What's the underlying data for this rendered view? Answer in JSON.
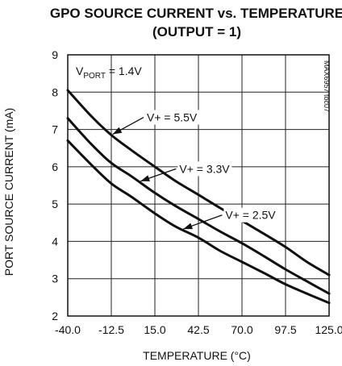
{
  "chart_data": {
    "type": "line",
    "title": "GPO SOURCE CURRENT vs. TEMPERATURE",
    "subtitle": "(OUTPUT = 1)",
    "xlabel": "TEMPERATURE (°C)",
    "ylabel": "PORT SOURCE CURRENT (mA)",
    "xlim": [
      -40,
      125
    ],
    "ylim": [
      2,
      9
    ],
    "xticks": [
      -40,
      -12.5,
      15,
      42.5,
      70,
      97.5,
      125
    ],
    "xtick_labels": [
      "-40.0",
      "-12.5",
      "15.0",
      "42.5",
      "70.0",
      "97.5",
      "125.0"
    ],
    "yticks": [
      2,
      3,
      4,
      5,
      6,
      7,
      8,
      9
    ],
    "ytick_labels": [
      "2",
      "3",
      "4",
      "5",
      "6",
      "7",
      "8",
      "9"
    ],
    "grid": true,
    "condition_text": {
      "prefix": "V",
      "sub": "PORT",
      "suffix": " = 1.4V"
    },
    "side_text": "MAX6957 toc07",
    "series": [
      {
        "name": "V+ = 5.5V",
        "x": [
          -40,
          -25,
          -12.5,
          0,
          15,
          28,
          42.5,
          56,
          70,
          84,
          97.5,
          111,
          125
        ],
        "y": [
          8.05,
          7.35,
          6.85,
          6.45,
          6.0,
          5.62,
          5.25,
          4.9,
          4.55,
          4.2,
          3.85,
          3.45,
          3.1
        ]
      },
      {
        "name": "V+ = 3.3V",
        "x": [
          -40,
          -25,
          -12.5,
          0,
          15,
          28,
          42.5,
          56,
          70,
          84,
          97.5,
          111,
          125
        ],
        "y": [
          7.3,
          6.6,
          6.1,
          5.75,
          5.3,
          4.95,
          4.6,
          4.27,
          3.95,
          3.6,
          3.25,
          2.93,
          2.6
        ]
      },
      {
        "name": "V+ = 2.5V",
        "x": [
          -40,
          -25,
          -12.5,
          0,
          15,
          28,
          42.5,
          56,
          70,
          84,
          97.5,
          111,
          125
        ],
        "y": [
          6.7,
          6.05,
          5.55,
          5.2,
          4.75,
          4.4,
          4.1,
          3.75,
          3.45,
          3.15,
          2.85,
          2.6,
          2.35
        ]
      }
    ],
    "annotations": [
      {
        "text": "V+ = 5.5V",
        "series": 0,
        "arrow_x": -12.5
      },
      {
        "text": "V+ = 3.3V",
        "series": 1,
        "arrow_x": 5
      },
      {
        "text": "V+ = 2.5V",
        "series": 2,
        "arrow_x": 32
      }
    ]
  }
}
